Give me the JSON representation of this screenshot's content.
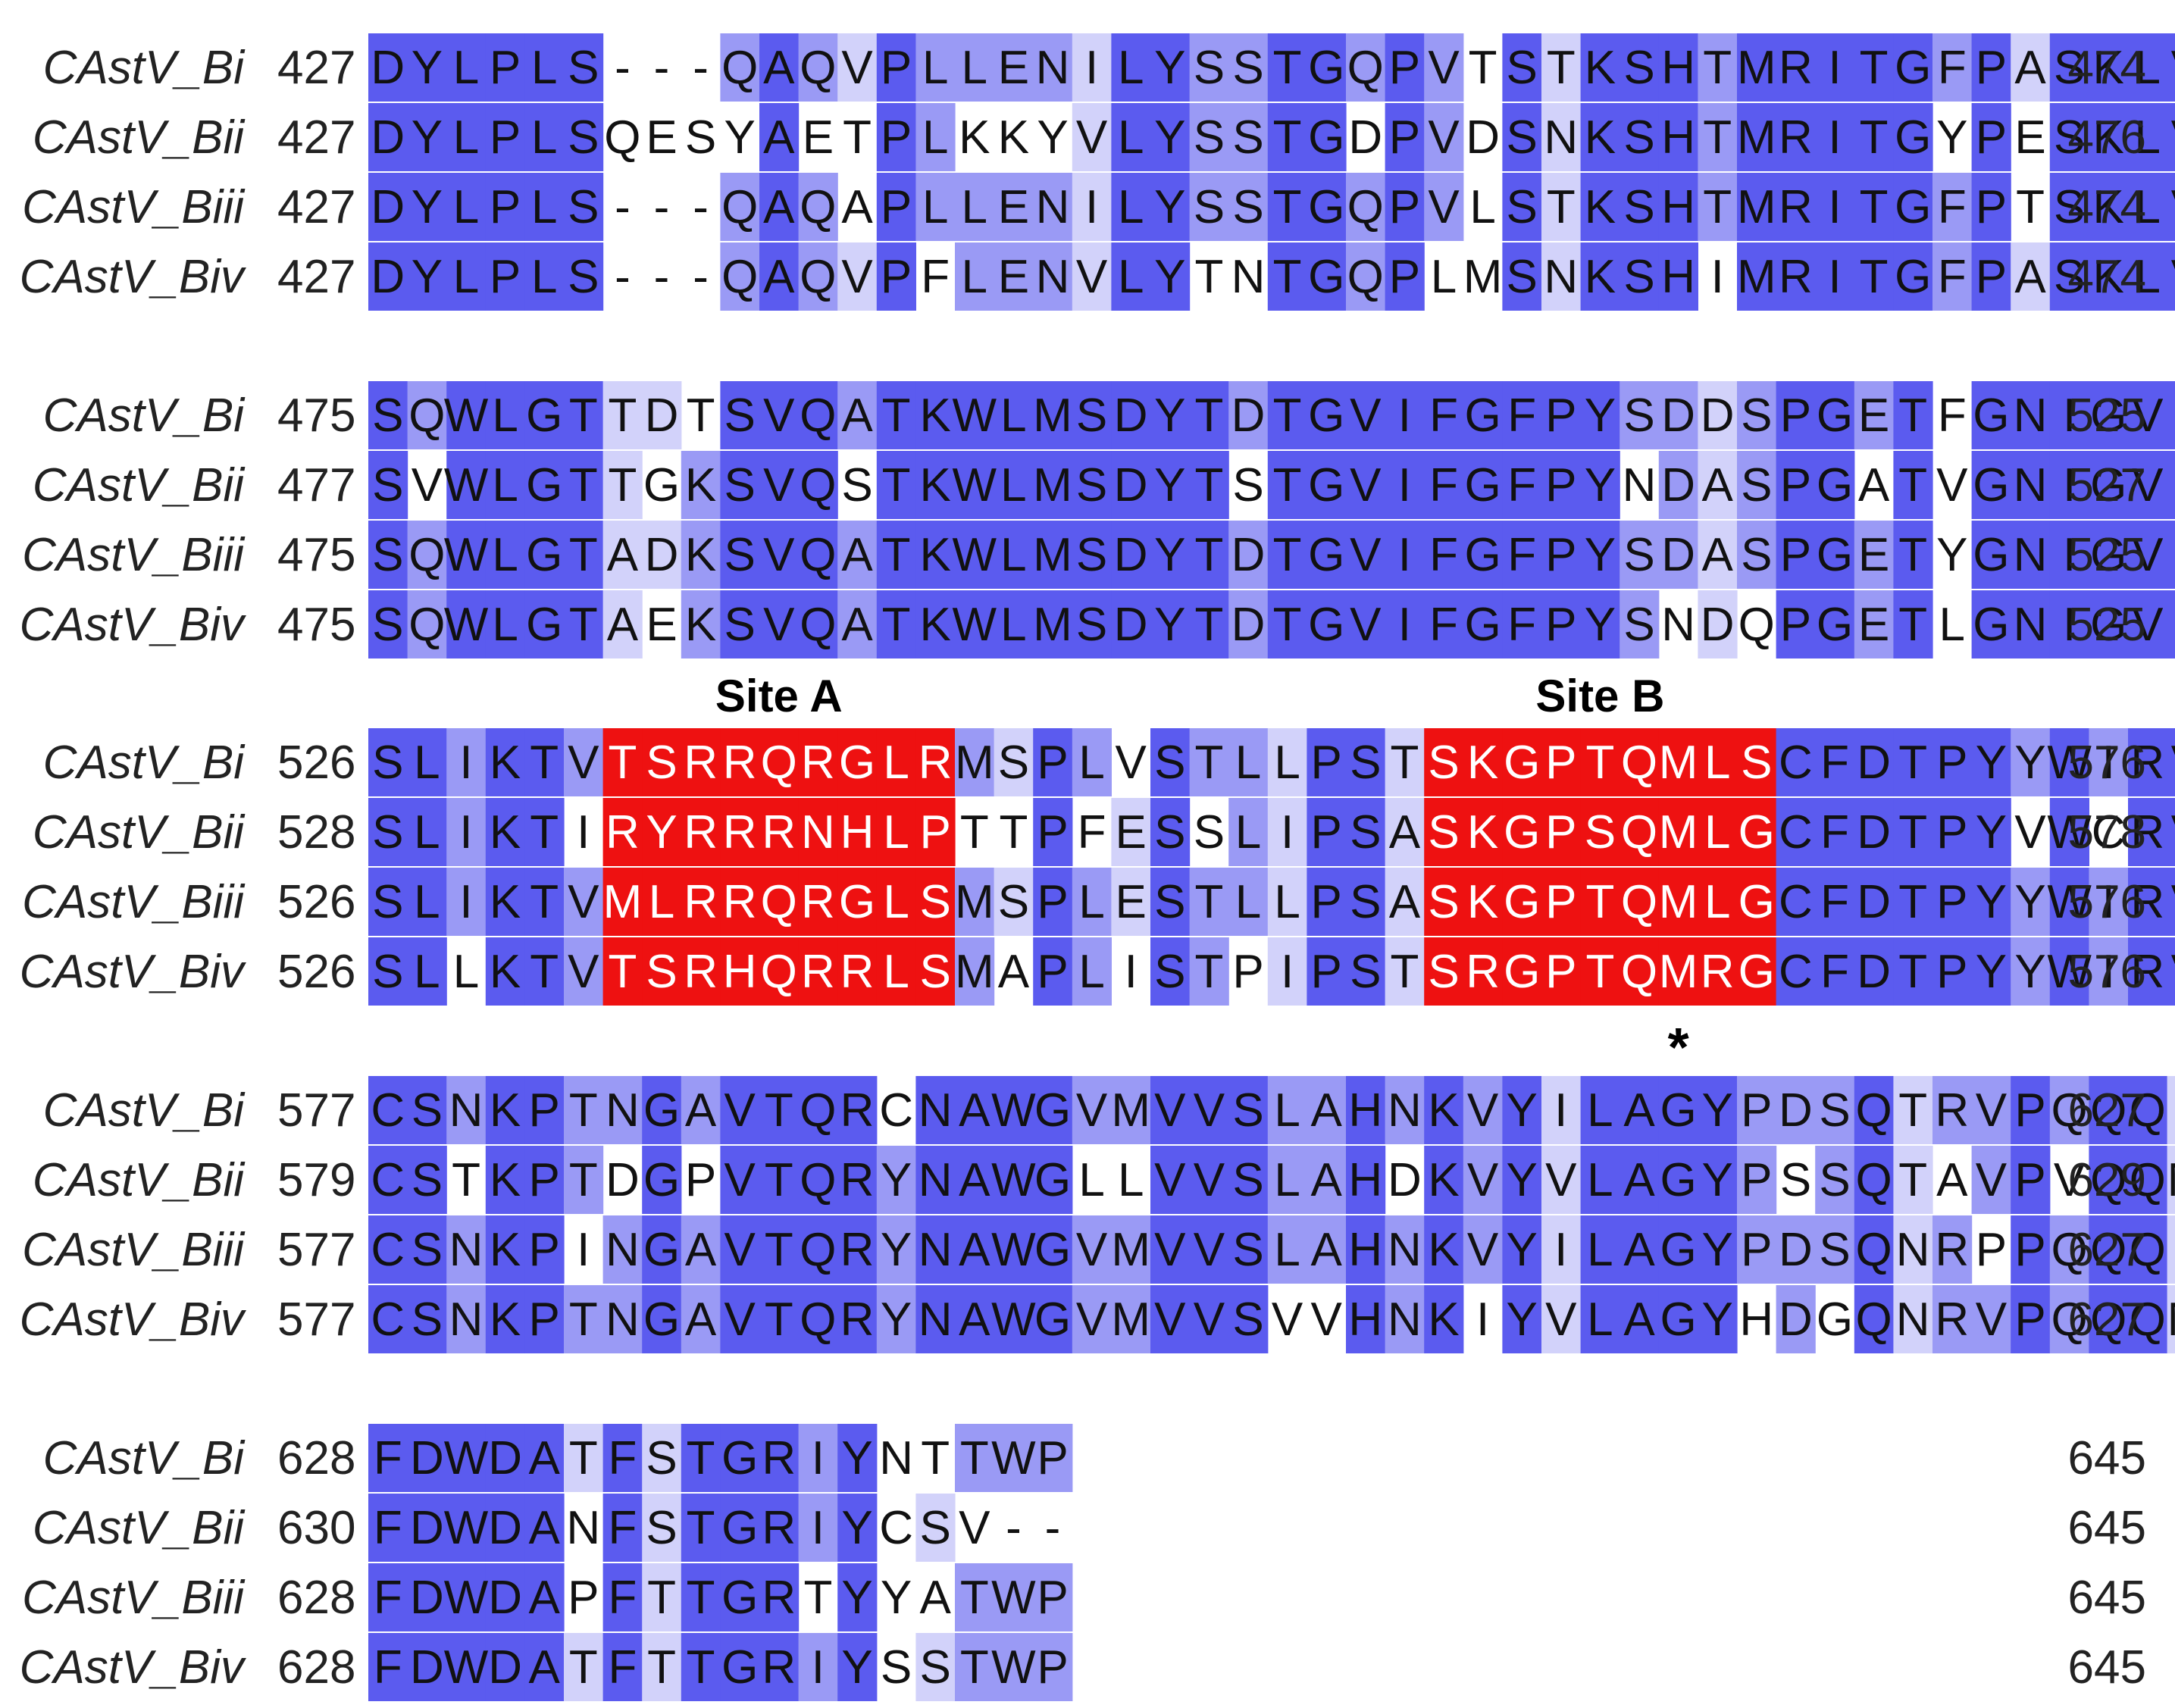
{
  "sequences": [
    "CAstV_Bi",
    "CAstV_Bii",
    "CAstV_Biii",
    "CAstV_Biv"
  ],
  "blocks": [
    {
      "start": [
        427,
        427,
        427,
        427
      ],
      "end": [
        474,
        476,
        474,
        474
      ],
      "rows": [
        "DYLPLS---QAQVPLLENILYSSTGQPVTSTKSHTMRITGFPASKLVTSTS",
        "DYLPLSQESYAETPLKKYVLYSSTGDPVDSNKSHTMRITGYPESKLVTS-S",
        "DYLPLS---QAQAPLLENILYSSTGQPVLSTKSHTMRITGFPTSKLVTSTS",
        "DYLPLS---QAQVPFLENVLYTNTGQPLMSNKSHIMRITGFPASKLVTSSS"
      ]
    },
    {
      "start": [
        475,
        477,
        475,
        475
      ],
      "end": [
        525,
        527,
        525,
        525
      ],
      "rows": [
        "SQWLGTTDTSVQATKWLMSDYTDTGVIFGFPYSDDSPGETFGNIGVIHTAK",
        "SVWLGTTGKSVQSTKWLMSDYTSTGVIFGFPYNDASPGATVGNIGVIHTAK",
        "SQWLGTADKSVQATKWLMSDYTDTGVIFGFPYSDASPGETYGNIGVIHTAK",
        "SQWLGTAEKSVQATKWLMSDYTDTGVIFGFPYSNDQPGETLGNIGVIHTSK"
      ]
    },
    {
      "start": [
        526,
        528,
        526,
        526
      ],
      "end": [
        576,
        578,
        576,
        576
      ],
      "rows": [
        "SLIKTVTSRRQRGLRMSPLVSTLLPSTSKGPTQMLSCFDTPYYWIRVCDNT",
        "SLIKTIRYRRRNHLPTTPFESSLIPSASKGPSQMLGCFDTPYVWCRVCDNT",
        "SLIKTVMLRRQRGLSMSPLESTLLPSASKGPTQMLGCFDTPYYWIRVCDNT",
        "SLLKTVTSRHQRRLSMAPLISTPIPSTSRGPTQMRGCFDTPYYWIRVCDNT"
      ],
      "sites": [
        {
          "label": "Site A",
          "from": 6,
          "to": 14
        },
        {
          "label": "Site B",
          "from": 27,
          "to": 35
        }
      ],
      "marker": {
        "symbol": "*",
        "column": 33
      }
    },
    {
      "start": [
        577,
        579,
        577,
        577
      ],
      "end": [
        627,
        629,
        627,
        627
      ],
      "rows": [
        "CSNKPTNGAVTQRCNAWGVMVVSLAHNKVYILAGYPDSQTRVPQQQLVWDT",
        "CSTKPTDGPVTQRYNAWGLLVVSLAHDKVYVLAGYPSSQTAVPVQQMVWDT",
        "CSNKPINGAVTQRYNAWGVMVVSLAHNKVYILAGYPDSQNRPPQQQLVWDT",
        "CSNKPTNGAVTQRYNAWGVMVVSVVHNKIYVLAGYHDGQNRVPQQQMVWDT"
      ]
    },
    {
      "start": [
        628,
        630,
        628,
        628
      ],
      "end": [
        645,
        645,
        645,
        645
      ],
      "rows": [
        "FDWDATFSTGRIYNTTWP",
        "FDWDANFSTGRIYCSV--",
        "FDWDAPFTTGRTYYATWP",
        "FDWDATFTTGRIYSSTWP"
      ]
    }
  ],
  "colors": {
    "identity_full": "#5b5bef",
    "identity_high": "#9a9af5",
    "identity_low": "#d2d2fa",
    "site_highlight": "#ee1111"
  }
}
